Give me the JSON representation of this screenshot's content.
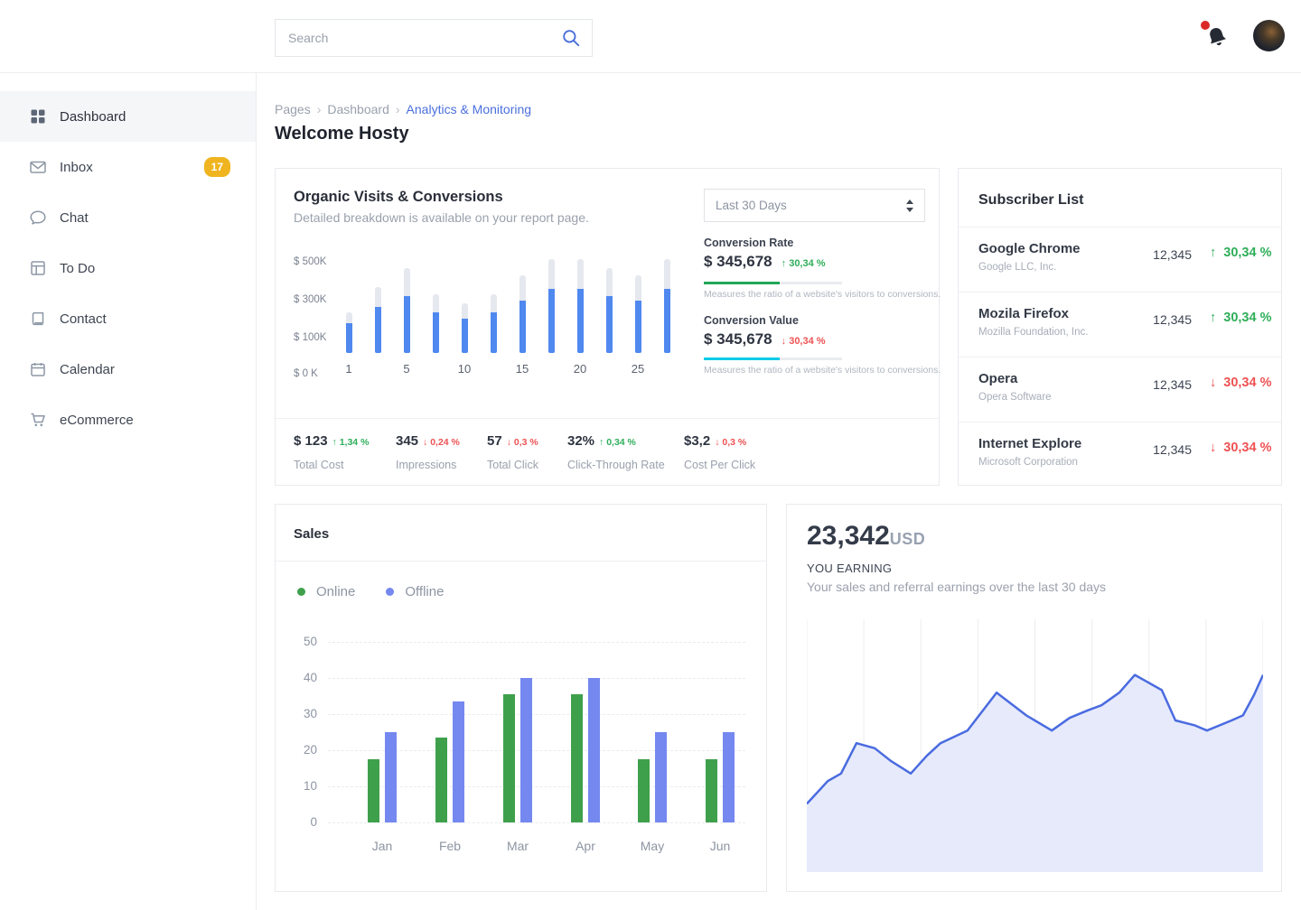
{
  "theme": {
    "green": "#2fae5a",
    "red": "#ee5253",
    "accent_blue": "#4f88ef",
    "link_blue": "#4a6fdc",
    "cyan": "#04cbe8",
    "badge_yellow": "#efb41f",
    "bar_gray": "#e5e8ee",
    "sales_green": "#3fa04c",
    "sales_blue": "#7488f0",
    "area_line": "#4a6be0",
    "area_fill": "#e6eafb"
  },
  "topbar": {
    "search_placeholder": "Search"
  },
  "sidebar": {
    "items": [
      {
        "label": "Dashboard",
        "icon": "grid-icon",
        "active": true
      },
      {
        "label": "Inbox",
        "icon": "mail-icon",
        "badge": "17"
      },
      {
        "label": "Chat",
        "icon": "chat-icon"
      },
      {
        "label": "To Do",
        "icon": "layout-icon"
      },
      {
        "label": "Contact",
        "icon": "book-icon"
      },
      {
        "label": "Calendar",
        "icon": "calendar-icon"
      },
      {
        "label": "eCommerce",
        "icon": "cart-icon"
      }
    ]
  },
  "breadcrumb": {
    "items": [
      "Pages",
      "Dashboard"
    ],
    "current": "Analytics & Monitoring",
    "separator": "›"
  },
  "page_title": "Welcome Hosty",
  "organic": {
    "title": "Organic Visits & Conversions",
    "subtitle": "Detailed breakdown is available on your report page.",
    "range_selector": "Last 30 Days",
    "conversion_rate": {
      "label": "Conversion Rate",
      "value": "$ 345,678",
      "change": "30,34 %",
      "direction": "up",
      "progress_pct": 55,
      "bar_color": "#21a757",
      "caption": "Measures the ratio of a website's visitors to conversions."
    },
    "conversion_value": {
      "label": "Conversion Value",
      "value": "$ 345,678",
      "change": "30,34 %",
      "direction": "down",
      "progress_pct": 55,
      "bar_color": "#04cbe8",
      "caption": "Measures the ratio of a website's visitors to conversions."
    },
    "chart_data": {
      "type": "bar",
      "y_tick_labels": [
        "$ 500K",
        "$ 300K",
        "$ 100K",
        "$ 0 K"
      ],
      "ylim": [
        0,
        520
      ],
      "x_tick_labels": [
        "1",
        "5",
        "10",
        "15",
        "20",
        "25"
      ],
      "x_tick_bar_indexes": [
        0,
        2,
        4,
        6,
        8,
        10
      ],
      "bars": [
        {
          "total": 220,
          "value": 160
        },
        {
          "total": 360,
          "value": 250
        },
        {
          "total": 460,
          "value": 310
        },
        {
          "total": 320,
          "value": 220
        },
        {
          "total": 270,
          "value": 185
        },
        {
          "total": 320,
          "value": 220
        },
        {
          "total": 420,
          "value": 285
        },
        {
          "total": 510,
          "value": 350
        },
        {
          "total": 510,
          "value": 350
        },
        {
          "total": 460,
          "value": 310
        },
        {
          "total": 420,
          "value": 285
        },
        {
          "total": 510,
          "value": 350
        }
      ]
    },
    "stats": [
      {
        "value": "$ 123",
        "change": "1,34 %",
        "direction": "up",
        "label": "Total Cost"
      },
      {
        "value": "345",
        "change": "0,24 %",
        "direction": "down",
        "label": "Impressions"
      },
      {
        "value": "57",
        "change": "0,3 %",
        "direction": "down",
        "label": "Total Click"
      },
      {
        "value": "32%",
        "change": "0,34 %",
        "direction": "up",
        "label": "Click-Through Rate"
      },
      {
        "value": "$3,2",
        "change": "0,3 %",
        "direction": "down",
        "label": "Cost Per Click"
      }
    ]
  },
  "subscribers": {
    "title": "Subscriber List",
    "rows": [
      {
        "name": "Google Chrome",
        "company": "Google LLC, Inc.",
        "value": "12,345",
        "change": "30,34 %",
        "direction": "up"
      },
      {
        "name": "Mozila Firefox",
        "company": "Mozilla Foundation, Inc.",
        "value": "12,345",
        "change": "30,34 %",
        "direction": "up"
      },
      {
        "name": "Opera",
        "company": "Opera Software",
        "value": "12,345",
        "change": "30,34 %",
        "direction": "down"
      },
      {
        "name": "Internet Explore",
        "company": "Microsoft Corporation",
        "value": "12,345",
        "change": "30,34 %",
        "direction": "down"
      }
    ]
  },
  "sales": {
    "title": "Sales",
    "legend": [
      {
        "label": "Online",
        "color": "#3fa04c"
      },
      {
        "label": "Offline",
        "color": "#7488f0"
      }
    ],
    "chart_data": {
      "type": "bar",
      "categories": [
        "Jan",
        "Feb",
        "Mar",
        "Apr",
        "May",
        "Jun"
      ],
      "series": [
        {
          "name": "Online",
          "color": "#3fa04c",
          "values": [
            17.5,
            23.5,
            35.5,
            35.5,
            17.5,
            17.5
          ]
        },
        {
          "name": "Offline",
          "color": "#7488f0",
          "values": [
            25,
            33.5,
            40,
            40,
            25,
            25
          ]
        }
      ],
      "yticks": [
        0,
        10,
        20,
        30,
        40,
        50
      ],
      "ylim": [
        0,
        50
      ]
    }
  },
  "earning": {
    "amount": "23,342",
    "currency": "USD",
    "label": "YOU EARNING",
    "subtitle": "Your sales and referral earnings over the last 30 days",
    "chart_data": {
      "type": "area",
      "line_color": "#4a6be0",
      "fill_color": "#e6eafb",
      "points": [
        [
          0,
          27
        ],
        [
          4.6,
          36
        ],
        [
          7.5,
          39
        ],
        [
          10.9,
          51
        ],
        [
          14.9,
          49
        ],
        [
          18.4,
          44
        ],
        [
          22.8,
          39
        ],
        [
          26.3,
          46
        ],
        [
          29.3,
          51
        ],
        [
          35.2,
          56
        ],
        [
          41.6,
          71
        ],
        [
          48.1,
          62
        ],
        [
          53.7,
          56
        ],
        [
          57.6,
          61
        ],
        [
          61.6,
          64
        ],
        [
          64.6,
          66
        ],
        [
          68.5,
          71
        ],
        [
          71.9,
          78
        ],
        [
          77.8,
          72
        ],
        [
          80.8,
          60
        ],
        [
          85.1,
          58
        ],
        [
          87.7,
          56
        ],
        [
          93.1,
          60
        ],
        [
          95.6,
          62
        ],
        [
          98.0,
          70
        ],
        [
          100,
          78
        ]
      ]
    }
  }
}
